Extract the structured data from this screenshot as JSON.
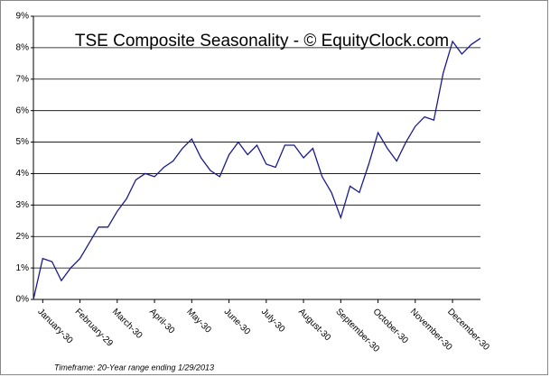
{
  "chart_data": {
    "type": "line",
    "title": "TSE Composite Seasonality - © EquityClock.com",
    "footnote": "Timeframe: 20-Year range ending 1/29/2013",
    "categories": [
      null,
      "January-30",
      null,
      null,
      null,
      "February-29",
      null,
      null,
      null,
      "March-30",
      null,
      null,
      null,
      "April-30",
      null,
      null,
      null,
      "May-30",
      null,
      null,
      null,
      "June-30",
      null,
      null,
      null,
      "July-30",
      null,
      null,
      null,
      "August-30",
      null,
      null,
      null,
      "September-30",
      null,
      null,
      null,
      "October-30",
      null,
      null,
      null,
      "November-30",
      null,
      null,
      null,
      "December-30",
      null,
      null,
      null
    ],
    "series": [
      {
        "name": "TSE Composite",
        "color": "#1a1a8c",
        "values": [
          0,
          1.3,
          1.2,
          0.6,
          1.0,
          1.3,
          1.8,
          2.3,
          2.3,
          2.8,
          3.2,
          3.8,
          4.0,
          3.9,
          4.2,
          4.4,
          4.8,
          5.1,
          4.5,
          4.1,
          3.9,
          4.6,
          5.0,
          4.6,
          4.9,
          4.3,
          4.2,
          4.9,
          4.9,
          4.5,
          4.8,
          3.9,
          3.4,
          2.6,
          3.6,
          3.4,
          4.3,
          5.3,
          4.8,
          4.4,
          5.0,
          5.5,
          5.8,
          5.7,
          7.2,
          8.2,
          7.8,
          8.1,
          8.3
        ]
      }
    ],
    "ylim": [
      0,
      9
    ],
    "yticks": [
      {
        "value": 0,
        "label": "0%"
      },
      {
        "value": 1,
        "label": "1%"
      },
      {
        "value": 2,
        "label": "2%"
      },
      {
        "value": 3,
        "label": "3%"
      },
      {
        "value": 4,
        "label": "4%"
      },
      {
        "value": 5,
        "label": "5%"
      },
      {
        "value": 6,
        "label": "6%"
      },
      {
        "value": 7,
        "label": "7%"
      },
      {
        "value": 8,
        "label": "8%"
      },
      {
        "value": 9,
        "label": "9%"
      }
    ],
    "grid": true
  }
}
